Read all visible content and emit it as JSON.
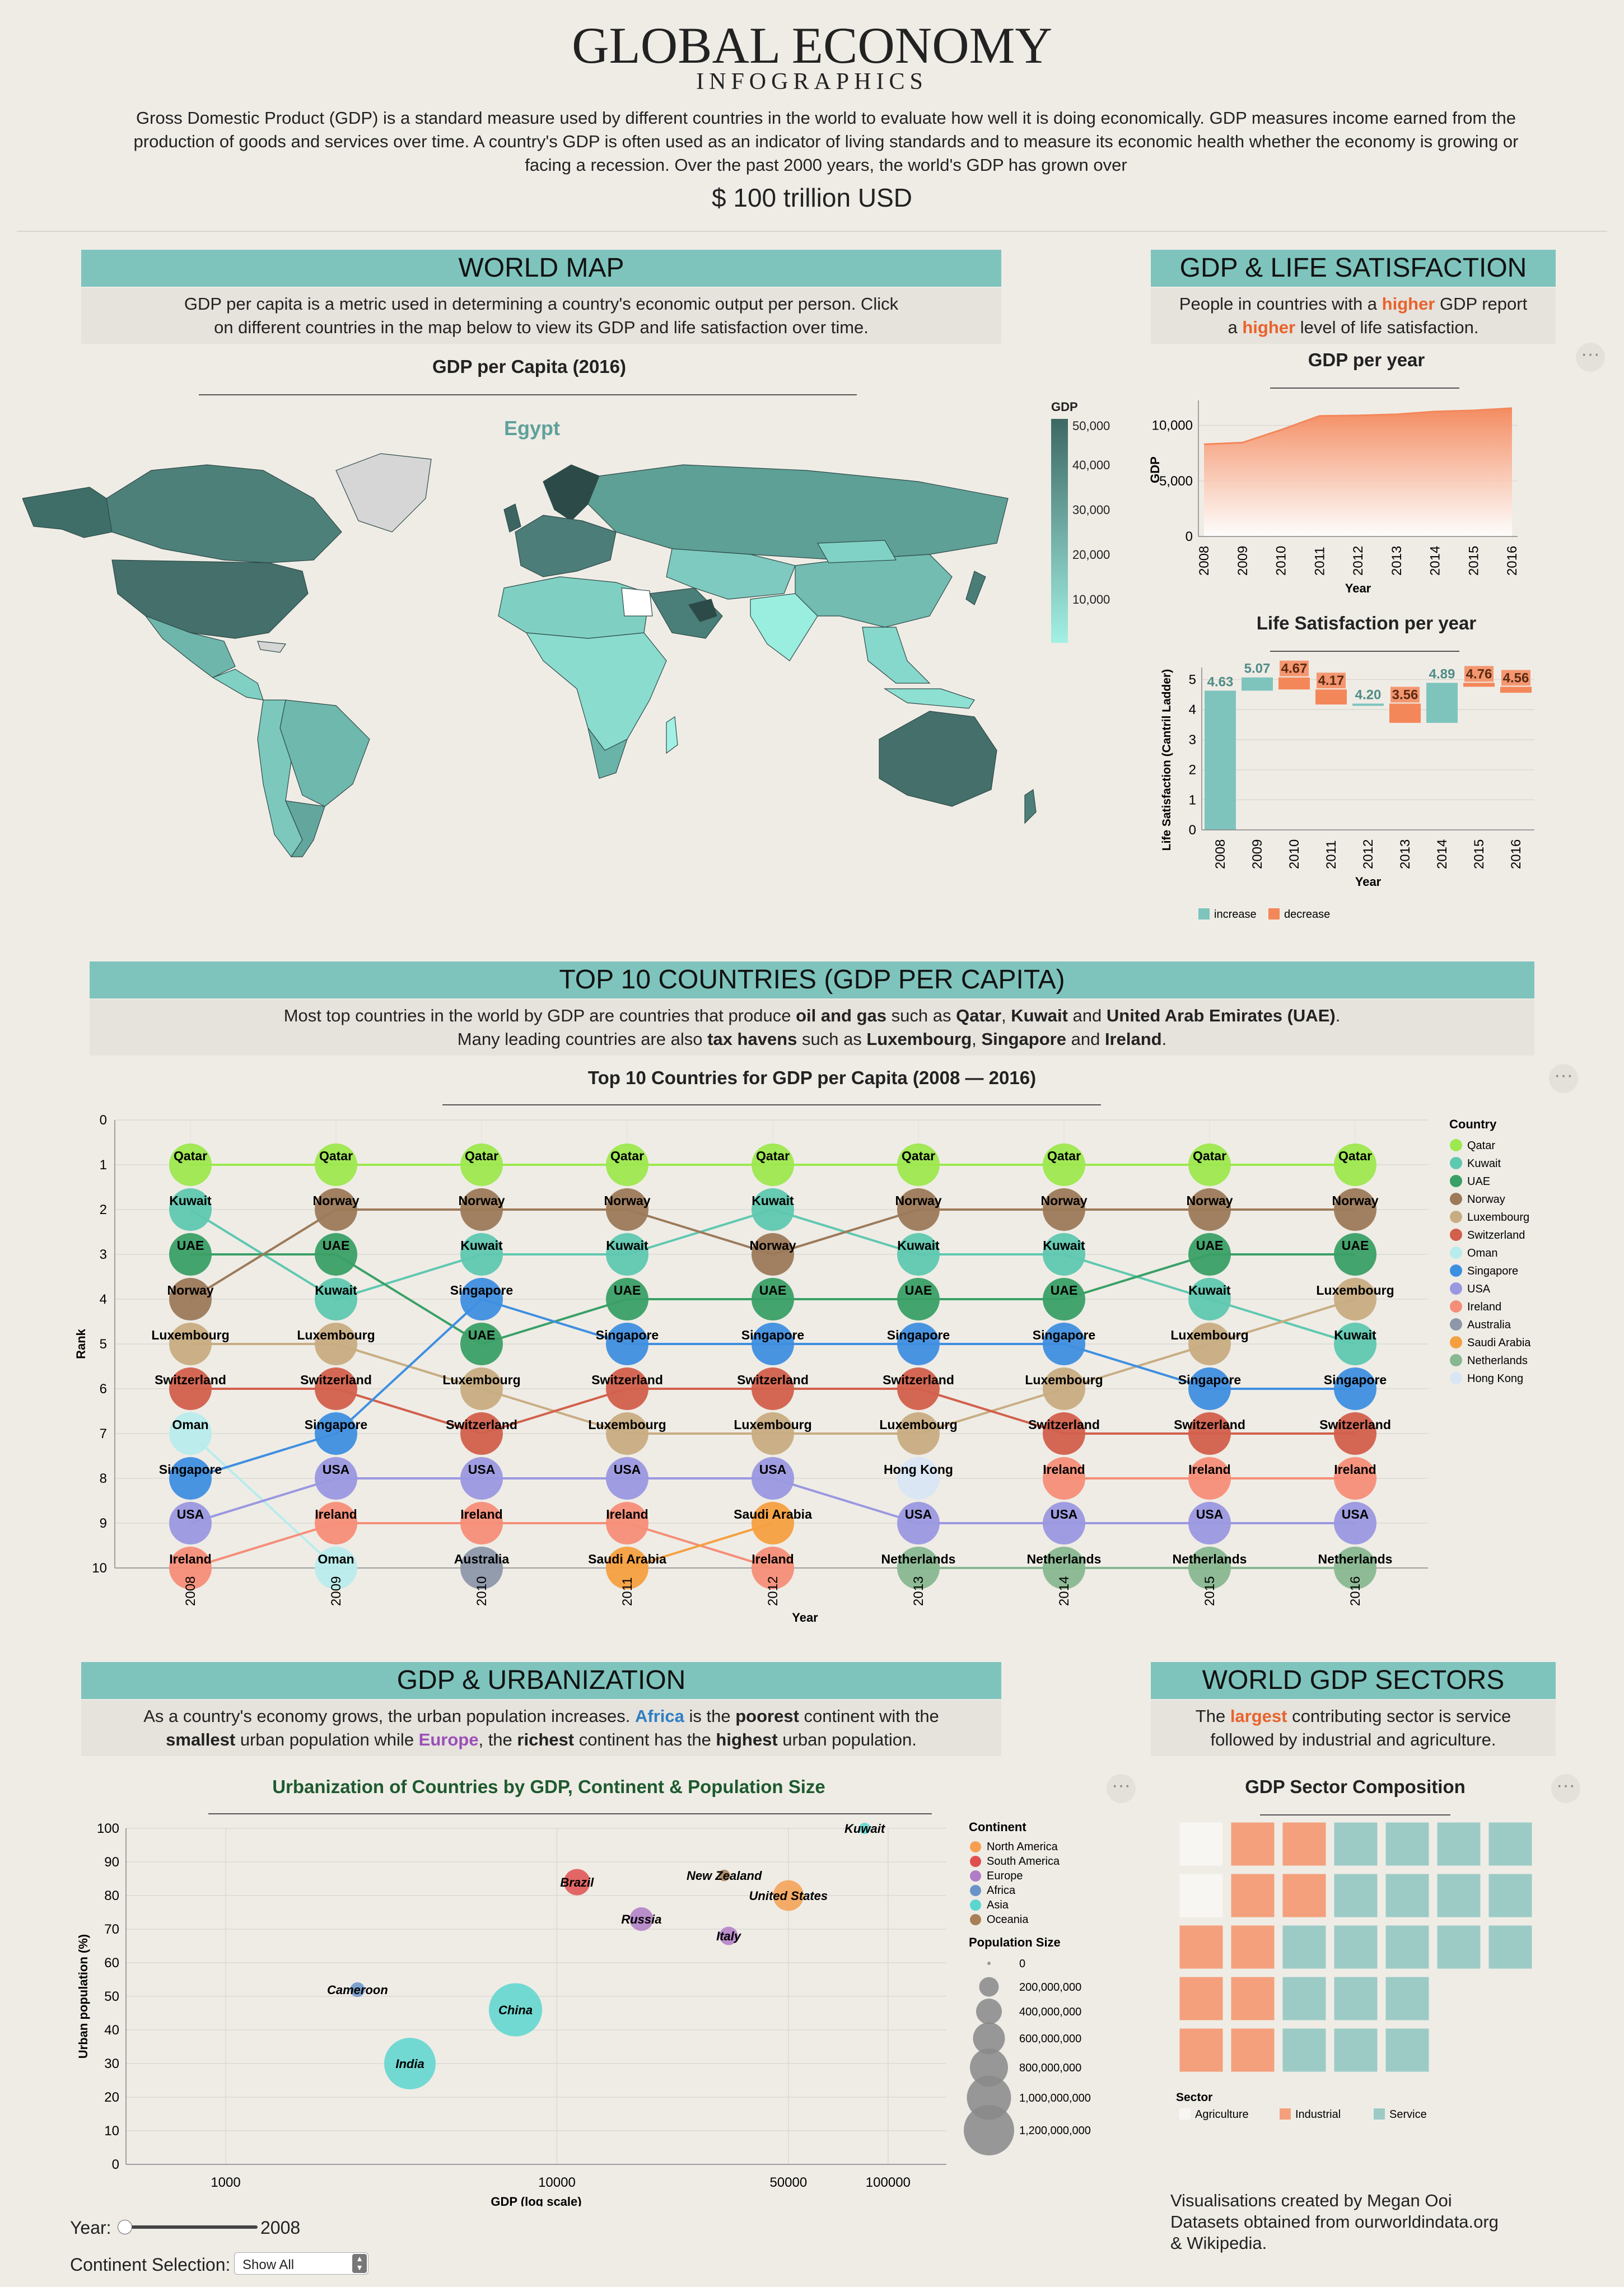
{
  "header": {
    "title": "GLOBAL ECONOMY",
    "subtitle": "INFOGRAPHICS",
    "intro": "Gross Domestic Product (GDP) is a standard measure used by different countries in the world to evaluate how well it is doing economically. GDP measures income earned from the production of goods and services over time. A country's GDP is often used as an indicator of living standards and to measure its economic health whether the economy is growing or facing a recession. Over the past 2000 years, the world's GDP has grown over",
    "headline": "$ 100 trillion USD"
  },
  "world_map": {
    "banner": "WORLD MAP",
    "description": "GDP per capita is a metric used in determining a country's economic output per person. Click on different countries in the map below to view its GDP and life satisfaction over time.",
    "chart_title": "GDP per Capita (2016)",
    "selected_country": "Egypt",
    "legend_title": "GDP",
    "legend_ticks": [
      "50,000",
      "40,000",
      "30,000",
      "20,000",
      "10,000"
    ],
    "colors": {
      "low": "#a3f0e4",
      "high": "#3d6864",
      "no_data": "#d6d6d6"
    }
  },
  "life_sat": {
    "banner": "GDP & LIFE SATISFACTION",
    "desc_a": "People in countries with a ",
    "desc_hl1": "higher",
    "desc_b": " GDP report",
    "desc_c": "a ",
    "desc_hl2": "higher",
    "desc_d": " level of life satisfaction."
  },
  "chart_data": [
    {
      "type": "area",
      "title": "GDP per year",
      "xlabel": "Year",
      "ylabel": "GDP",
      "x": [
        "2008",
        "2009",
        "2010",
        "2011",
        "2012",
        "2013",
        "2014",
        "2015",
        "2016"
      ],
      "values": [
        8300,
        8450,
        9600,
        10850,
        10900,
        11000,
        11250,
        11350,
        11550
      ],
      "ylim": [
        0,
        12000
      ],
      "yticks": [
        "0",
        "5,000",
        "10,000"
      ],
      "color": "#f4875a"
    },
    {
      "type": "bar",
      "title": "Life Satisfaction per year",
      "xlabel": "Year",
      "ylabel": "Life Satisfaction (Cantril Ladder)",
      "categories": [
        "2008",
        "2009",
        "2010",
        "2011",
        "2012",
        "2013",
        "2014",
        "2015",
        "2016"
      ],
      "values": [
        4.63,
        5.07,
        4.67,
        4.17,
        4.2,
        3.56,
        4.89,
        4.76,
        4.56
      ],
      "labels": [
        "4.63",
        "5.07",
        "4.67",
        "4.17",
        "4.20",
        "3.56",
        "4.89",
        "4.76",
        "4.56"
      ],
      "ylim": [
        0,
        5.4
      ],
      "yticks": [
        "0",
        "1",
        "2",
        "3",
        "4",
        "5"
      ],
      "legend": [
        "increase",
        "decrease"
      ],
      "colors": {
        "increase": "#7ec4bd",
        "decrease": "#f4875a"
      }
    },
    {
      "type": "line",
      "title": "Top 10 Countries for GDP per Capita (2008 — 2016)",
      "xlabel": "Year",
      "ylabel": "Rank",
      "x": [
        "2008",
        "2009",
        "2010",
        "2011",
        "2012",
        "2013",
        "2014",
        "2015",
        "2016"
      ],
      "yticks": [
        "0",
        "1",
        "2",
        "3",
        "4",
        "5",
        "6",
        "7",
        "8",
        "9",
        "10"
      ],
      "legend_title": "Country",
      "series": [
        {
          "name": "Qatar",
          "color": "#9de84f",
          "ranks": [
            1,
            1,
            1,
            1,
            1,
            1,
            1,
            1,
            1
          ]
        },
        {
          "name": "Kuwait",
          "color": "#5fc8b0",
          "ranks": [
            2,
            4,
            3,
            3,
            2,
            3,
            3,
            4,
            5
          ]
        },
        {
          "name": "UAE",
          "color": "#3aa066",
          "ranks": [
            3,
            3,
            5,
            4,
            4,
            4,
            4,
            3,
            3
          ]
        },
        {
          "name": "Norway",
          "color": "#9c7a5a",
          "ranks": [
            4,
            2,
            2,
            2,
            3,
            2,
            2,
            2,
            2
          ]
        },
        {
          "name": "Luxembourg",
          "color": "#c8ad82",
          "ranks": [
            5,
            5,
            6,
            7,
            7,
            7,
            6,
            5,
            4
          ]
        },
        {
          "name": "Switzerland",
          "color": "#d2604c",
          "ranks": [
            6,
            6,
            7,
            6,
            6,
            6,
            7,
            7,
            7
          ]
        },
        {
          "name": "Oman",
          "color": "#b8ecec",
          "ranks": [
            7,
            10,
            null,
            null,
            null,
            null,
            null,
            null,
            null
          ]
        },
        {
          "name": "Singapore",
          "color": "#3f8fe0",
          "ranks": [
            8,
            7,
            4,
            5,
            5,
            5,
            5,
            6,
            6
          ]
        },
        {
          "name": "USA",
          "color": "#9a98e0",
          "ranks": [
            9,
            8,
            8,
            8,
            8,
            9,
            9,
            9,
            9
          ]
        },
        {
          "name": "Ireland",
          "color": "#f58e78",
          "ranks": [
            10,
            9,
            9,
            9,
            10,
            null,
            8,
            8,
            8
          ]
        },
        {
          "name": "Australia",
          "color": "#8c98aa",
          "ranks": [
            null,
            null,
            10,
            null,
            null,
            null,
            null,
            null,
            null
          ]
        },
        {
          "name": "Saudi Arabia",
          "color": "#f5a040",
          "ranks": [
            null,
            null,
            null,
            10,
            9,
            null,
            null,
            null,
            null
          ]
        },
        {
          "name": "Netherlands",
          "color": "#88b890",
          "ranks": [
            null,
            null,
            null,
            null,
            null,
            10,
            10,
            10,
            10
          ]
        },
        {
          "name": "Hong Kong",
          "color": "#d8e6f4",
          "ranks": [
            null,
            null,
            null,
            null,
            null,
            8,
            null,
            null,
            null
          ]
        }
      ]
    },
    {
      "type": "scatter",
      "title": "Urbanization of Countries by GDP, Continent & Population Size",
      "xlabel": "GDP (log scale)",
      "ylabel": "Urban population (%)",
      "xticks": [
        "1000",
        "10000",
        "50000",
        "100000"
      ],
      "yticks": [
        "0",
        "10",
        "20",
        "30",
        "40",
        "50",
        "60",
        "70",
        "80",
        "90",
        "100"
      ],
      "xlim": [
        500,
        150000
      ],
      "ylim": [
        0,
        100
      ],
      "legend_continent_title": "Continent",
      "continents": [
        {
          "name": "North America",
          "color": "#f5a050"
        },
        {
          "name": "South America",
          "color": "#e04f4f"
        },
        {
          "name": "Europe",
          "color": "#b07cc6"
        },
        {
          "name": "Africa",
          "color": "#6a94c8"
        },
        {
          "name": "Asia",
          "color": "#5ad6ce"
        },
        {
          "name": "Oceania",
          "color": "#a88056"
        }
      ],
      "legend_size_title": "Population Size",
      "size_legend": [
        "0",
        "200,000,000",
        "400,000,000",
        "600,000,000",
        "800,000,000",
        "1,000,000,000",
        "1,200,000,000"
      ],
      "labeled_points": [
        {
          "name": "Kuwait",
          "gdp": 85000,
          "urban": 100,
          "continent": "Asia",
          "pop": 4000000
        },
        {
          "name": "Brazil",
          "gdp": 11500,
          "urban": 84,
          "continent": "South America",
          "pop": 200000000
        },
        {
          "name": "New Zealand",
          "gdp": 32000,
          "urban": 86,
          "continent": "Oceania",
          "pop": 4500000
        },
        {
          "name": "United States",
          "gdp": 50000,
          "urban": 80,
          "continent": "North America",
          "pop": 310000000
        },
        {
          "name": "Russia",
          "gdp": 18000,
          "urban": 73,
          "continent": "Europe",
          "pop": 143000000
        },
        {
          "name": "Italy",
          "gdp": 33000,
          "urban": 68,
          "continent": "Europe",
          "pop": 60000000
        },
        {
          "name": "Cameroon",
          "gdp": 2500,
          "urban": 52,
          "continent": "Africa",
          "pop": 22000000
        },
        {
          "name": "China",
          "gdp": 7500,
          "urban": 46,
          "continent": "Asia",
          "pop": 1300000000
        },
        {
          "name": "India",
          "gdp": 3600,
          "urban": 30,
          "continent": "Asia",
          "pop": 1200000000
        }
      ]
    },
    {
      "type": "waffle",
      "title": "GDP Sector Composition",
      "legend_title": "Sector",
      "sectors": [
        {
          "name": "Agriculture",
          "color": "#f8f6f3",
          "cells": 2
        },
        {
          "name": "Industrial",
          "color": "#f4a07c",
          "cells": 10
        },
        {
          "name": "Service",
          "color": "#9ccbc6",
          "cells": 21
        }
      ]
    }
  ],
  "top10": {
    "banner": "TOP 10 COUNTRIES (GDP PER CAPITA)",
    "line1_a": "Most top countries in the world by GDP are countries that produce ",
    "line1_b": "oil and gas",
    "line1_c": " such as ",
    "line1_d": "Qatar",
    "line1_e": ", ",
    "line1_f": "Kuwait",
    "line1_g": " and ",
    "line1_h": "United Arab Emirates (UAE)",
    "line1_i": ".",
    "line2_a": "Many leading countries are also ",
    "line2_b": "tax havens",
    "line2_c": " such as ",
    "line2_d": "Luxembourg",
    "line2_e": ", ",
    "line2_f": "Singapore",
    "line2_g": " and ",
    "line2_h": "Ireland",
    "line2_i": "."
  },
  "urban": {
    "banner": "GDP & URBANIZATION",
    "l1_a": "As a country's economy grows, the urban population increases. ",
    "l1_b": "Africa",
    "l1_c": " is the ",
    "l1_d": "poorest",
    "l1_e": " continent with the",
    "l2_a": "smallest",
    "l2_b": " urban population while ",
    "l2_c": "Europe",
    "l2_d": ", the ",
    "l2_e": "richest",
    "l2_f": " continent has the ",
    "l2_g": "highest",
    "l2_h": " urban population.",
    "africa_color": "#2e7fc4",
    "europe_color": "#9a4fb8",
    "year_label": "Year:",
    "year_value": "2008",
    "continent_label": "Continent Selection:",
    "continent_selected": "Show All"
  },
  "sectors": {
    "banner": "WORLD GDP SECTORS",
    "l1_a": "The ",
    "l1_b": "largest",
    "l1_c": " contributing sector is service",
    "l2": "followed by industrial and agriculture."
  },
  "footer": {
    "line1": "Visualisations created by Megan Ooi",
    "line2_a": "Datasets obtained from ",
    "line2_b": "ourworldindata.org",
    "line3": "& Wikipedia."
  },
  "menu_icon": "more-horizontal-icon",
  "menu_glyph": "···"
}
